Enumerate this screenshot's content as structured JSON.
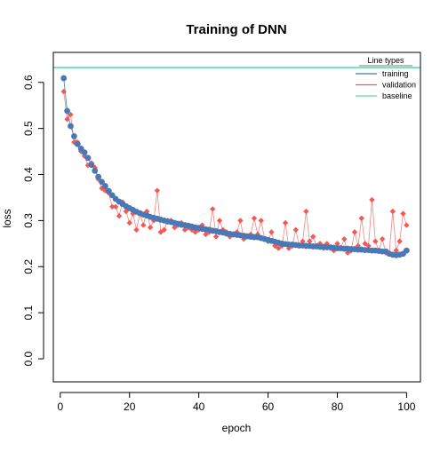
{
  "chart_data": {
    "type": "line",
    "title": "Training of DNN",
    "xlabel": "epoch",
    "ylabel": "loss",
    "xlim": [
      -2,
      104
    ],
    "ylim": [
      -0.05,
      0.665
    ],
    "xticks": [
      0,
      20,
      40,
      60,
      80,
      100
    ],
    "yticks": [
      0.0,
      0.1,
      0.2,
      0.3,
      0.4,
      0.5,
      0.6
    ],
    "ytick_labels": [
      "0.0",
      "0.1",
      "0.2",
      "0.3",
      "0.4",
      "0.5",
      "0.6"
    ],
    "grid": false,
    "legend": {
      "title": "Line types",
      "position": "top-right",
      "entries": [
        "training",
        "validation",
        "baseline"
      ]
    },
    "colors": {
      "training": "#4a78b4",
      "validation": "#f15a54",
      "baseline": "#5ad6a6"
    },
    "baseline": 0.632,
    "x": [
      1,
      2,
      3,
      4,
      5,
      6,
      7,
      8,
      9,
      10,
      11,
      12,
      13,
      14,
      15,
      16,
      17,
      18,
      19,
      20,
      21,
      22,
      23,
      24,
      25,
      26,
      27,
      28,
      29,
      30,
      31,
      32,
      33,
      34,
      35,
      36,
      37,
      38,
      39,
      40,
      41,
      42,
      43,
      44,
      45,
      46,
      47,
      48,
      49,
      50,
      51,
      52,
      53,
      54,
      55,
      56,
      57,
      58,
      59,
      60,
      61,
      62,
      63,
      64,
      65,
      66,
      67,
      68,
      69,
      70,
      71,
      72,
      73,
      74,
      75,
      76,
      77,
      78,
      79,
      80,
      81,
      82,
      83,
      84,
      85,
      86,
      87,
      88,
      89,
      90,
      91,
      92,
      93,
      94,
      95,
      96,
      97,
      98,
      99,
      100
    ],
    "series": [
      {
        "name": "training",
        "values": [
          0.609,
          0.538,
          0.505,
          0.483,
          0.466,
          0.456,
          0.448,
          0.436,
          0.421,
          0.408,
          0.395,
          0.384,
          0.375,
          0.364,
          0.355,
          0.347,
          0.341,
          0.336,
          0.331,
          0.327,
          0.323,
          0.319,
          0.316,
          0.313,
          0.311,
          0.308,
          0.306,
          0.304,
          0.302,
          0.3,
          0.298,
          0.297,
          0.295,
          0.293,
          0.291,
          0.29,
          0.289,
          0.287,
          0.285,
          0.284,
          0.282,
          0.281,
          0.28,
          0.278,
          0.277,
          0.275,
          0.274,
          0.272,
          0.271,
          0.27,
          0.269,
          0.268,
          0.267,
          0.266,
          0.265,
          0.264,
          0.264,
          0.262,
          0.26,
          0.258,
          0.256,
          0.254,
          0.252,
          0.25,
          0.249,
          0.248,
          0.248,
          0.247,
          0.246,
          0.246,
          0.245,
          0.245,
          0.244,
          0.244,
          0.243,
          0.243,
          0.242,
          0.242,
          0.241,
          0.24,
          0.24,
          0.239,
          0.239,
          0.238,
          0.238,
          0.237,
          0.237,
          0.236,
          0.236,
          0.235,
          0.235,
          0.234,
          0.233,
          0.233,
          0.228,
          0.226,
          0.225,
          0.226,
          0.228,
          0.235
        ]
      },
      {
        "name": "validation",
        "values": [
          0.58,
          0.52,
          0.53,
          0.47,
          0.47,
          0.45,
          0.44,
          0.42,
          0.425,
          0.415,
          0.39,
          0.37,
          0.365,
          0.36,
          0.33,
          0.33,
          0.31,
          0.34,
          0.32,
          0.295,
          0.315,
          0.28,
          0.315,
          0.29,
          0.32,
          0.285,
          0.3,
          0.365,
          0.275,
          0.28,
          0.3,
          0.3,
          0.285,
          0.29,
          0.295,
          0.28,
          0.285,
          0.28,
          0.275,
          0.28,
          0.29,
          0.27,
          0.275,
          0.325,
          0.265,
          0.3,
          0.28,
          0.275,
          0.265,
          0.27,
          0.275,
          0.3,
          0.26,
          0.265,
          0.27,
          0.305,
          0.27,
          0.3,
          0.26,
          0.255,
          0.275,
          0.245,
          0.24,
          0.245,
          0.295,
          0.24,
          0.245,
          0.28,
          0.245,
          0.255,
          0.32,
          0.255,
          0.265,
          0.245,
          0.25,
          0.24,
          0.25,
          0.24,
          0.235,
          0.25,
          0.24,
          0.26,
          0.23,
          0.235,
          0.275,
          0.245,
          0.305,
          0.25,
          0.245,
          0.345,
          0.255,
          0.235,
          0.26,
          0.23,
          0.23,
          0.32,
          0.235,
          0.255,
          0.315,
          0.29
        ]
      }
    ]
  }
}
